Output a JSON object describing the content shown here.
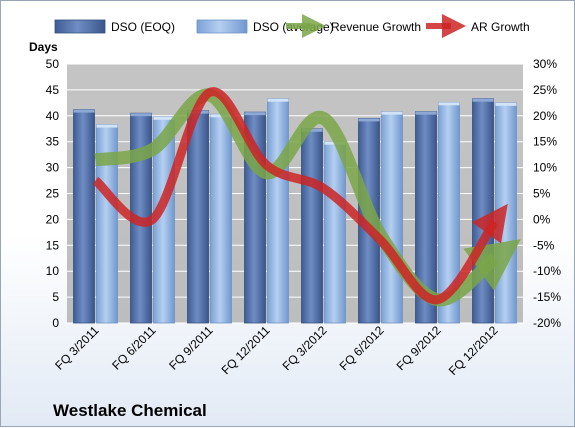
{
  "chart_data": {
    "type": "bar",
    "title": "",
    "company_label": "Westlake Chemical",
    "ylabel": "Days",
    "ylim": [
      0,
      50
    ],
    "y_ticks": [
      0,
      5,
      10,
      15,
      20,
      25,
      30,
      35,
      40,
      45,
      50
    ],
    "y2lim": [
      -20,
      30
    ],
    "y2_ticks": [
      "-20%",
      "-15%",
      "-10%",
      "-5%",
      "0%",
      "5%",
      "10%",
      "15%",
      "20%",
      "25%",
      "30%"
    ],
    "x_tick_labels": [
      "FQ 3/2011",
      "FQ 6/2011",
      "FQ 9/2011",
      "FQ 12/2011",
      "FQ 3/2012",
      "FQ 6/2012",
      "FQ 9/2012",
      "FQ 12/2012"
    ],
    "legend_position": "top",
    "series": [
      {
        "name": "DSO (EOQ)",
        "type": "bar",
        "color": "#4f6fa8",
        "values": [
          41.2,
          40.5,
          41.0,
          40.7,
          37.5,
          39.5,
          40.8,
          43.3
        ]
      },
      {
        "name": "DSO (average)",
        "type": "bar",
        "color": "#8fb3e0",
        "values": [
          38.3,
          39.8,
          40.3,
          43.3,
          35.0,
          40.8,
          42.6,
          42.5
        ]
      },
      {
        "name": "Revenue Growth",
        "type": "line",
        "axis": "right",
        "color": "#7aa648",
        "values": [
          11.5,
          13.5,
          24.0,
          9.0,
          19.5,
          -3.0,
          -15.5,
          -7.5
        ]
      },
      {
        "name": "AR Growth",
        "type": "line",
        "axis": "right",
        "color": "#cc2424",
        "values": [
          7.5,
          0.0,
          24.5,
          10.5,
          6.0,
          -4.0,
          -15.5,
          -0.5
        ]
      }
    ]
  }
}
